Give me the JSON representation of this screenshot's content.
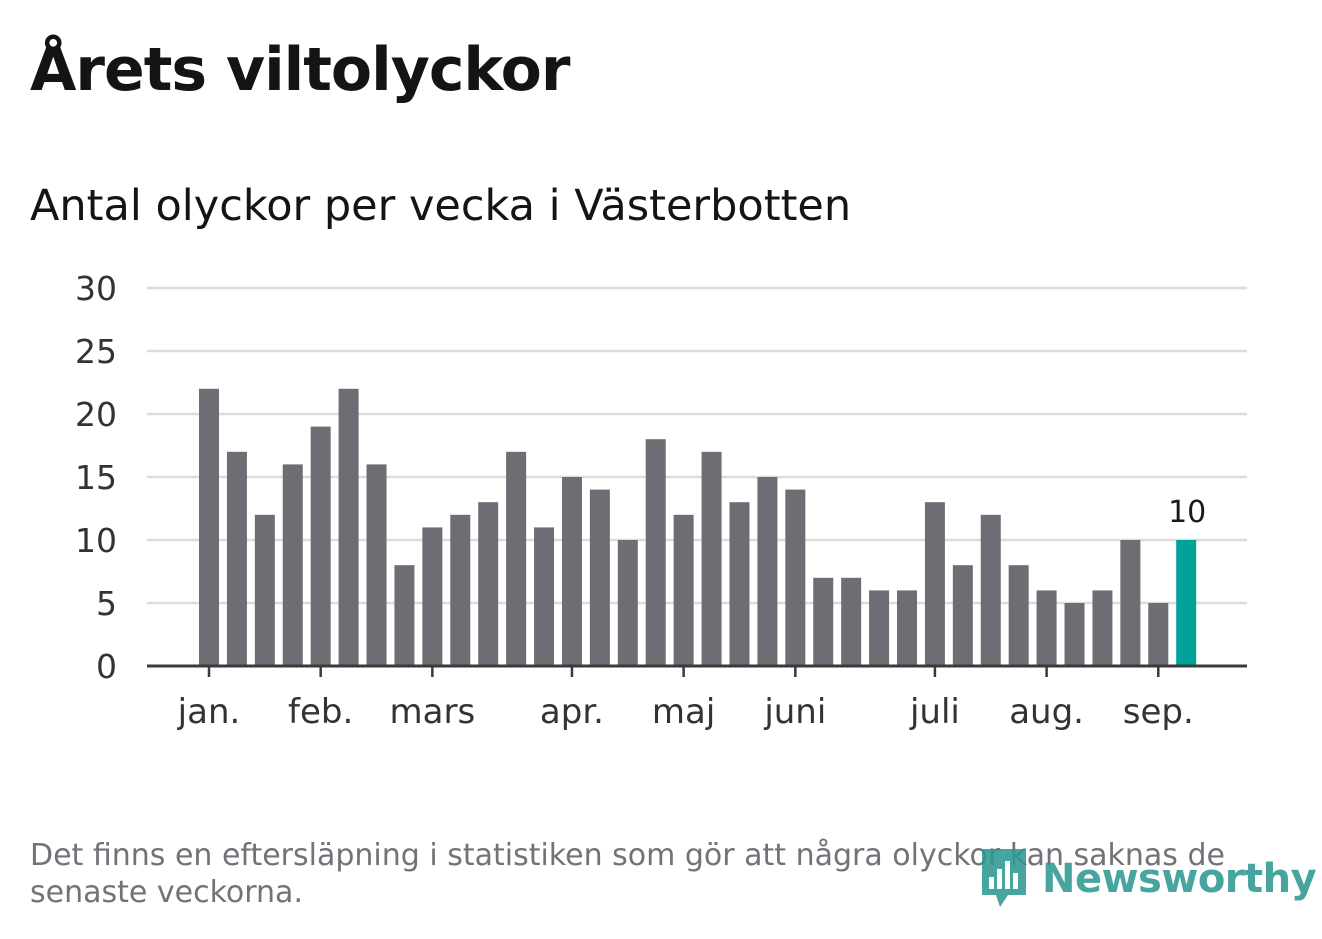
{
  "title": "Årets viltolyckor",
  "subtitle": "Antal olyckor per vecka i Västerbotten",
  "footnote": "Det finns en eftersläpning i statistiken som gör att några olyckor kan saknas de senaste veckorna.",
  "logo": {
    "text": "Newsworthy",
    "icon": "bar-chart-speech-bubble-icon"
  },
  "colors": {
    "bar": "#6e6d73",
    "highlight": "#00a39a",
    "grid": "#dcdcdc",
    "axis": "#3a3a3a",
    "logo": "#2f9892"
  },
  "chart_data": {
    "type": "bar",
    "ylim": [
      0,
      30
    ],
    "yticks": [
      0,
      5,
      10,
      15,
      20,
      25,
      30
    ],
    "grid": true,
    "values": [
      22,
      17,
      12,
      16,
      19,
      22,
      16,
      8,
      11,
      12,
      13,
      17,
      11,
      15,
      14,
      10,
      18,
      12,
      17,
      13,
      15,
      14,
      7,
      7,
      6,
      6,
      13,
      8,
      12,
      8,
      6,
      5,
      6,
      10,
      5,
      10
    ],
    "month_labels": [
      {
        "label": "jan.",
        "week": 1
      },
      {
        "label": "feb.",
        "week": 5
      },
      {
        "label": "mars",
        "week": 9
      },
      {
        "label": "apr.",
        "week": 14
      },
      {
        "label": "maj",
        "week": 18
      },
      {
        "label": "juni",
        "week": 22
      },
      {
        "label": "juli",
        "week": 27
      },
      {
        "label": "aug.",
        "week": 31
      },
      {
        "label": "sep.",
        "week": 35
      }
    ],
    "highlight_last": true,
    "highlight_label": "10"
  }
}
